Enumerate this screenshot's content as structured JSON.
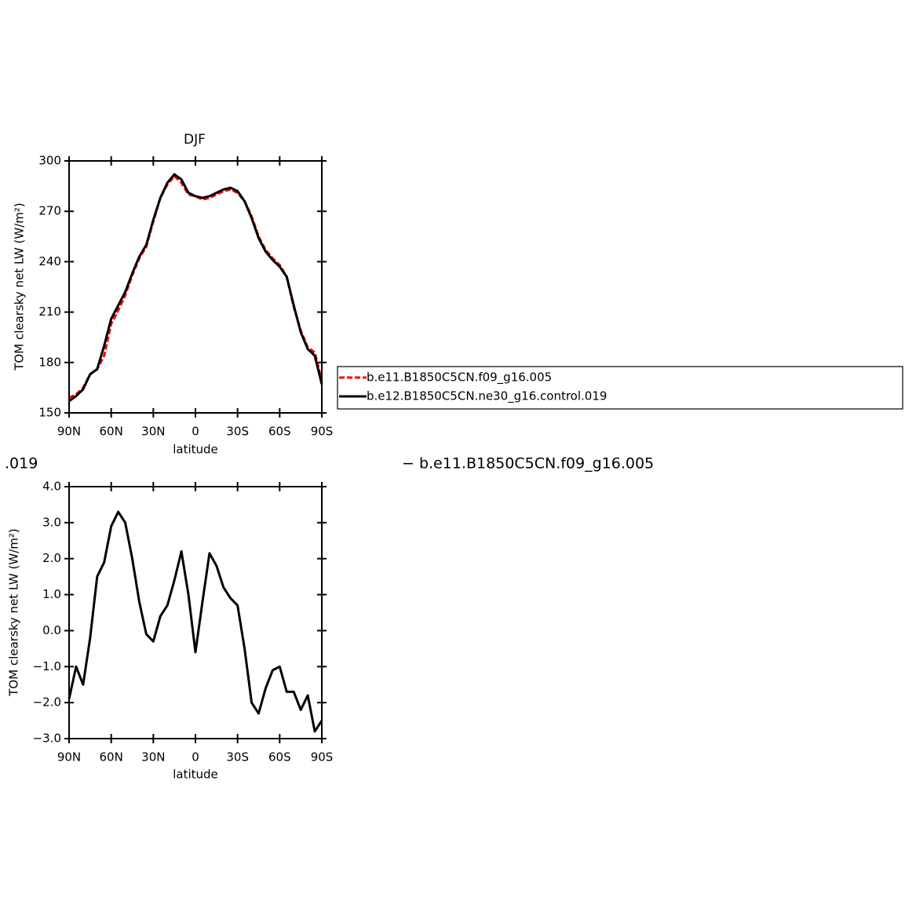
{
  "chart_data": [
    {
      "type": "line",
      "title": "DJF",
      "x_label": "latitude",
      "y_label": "TOM clearsky net LW (W/m²)",
      "x": [
        90,
        85,
        80,
        75,
        70,
        65,
        60,
        55,
        50,
        45,
        40,
        35,
        30,
        25,
        20,
        15,
        10,
        5,
        0,
        -5,
        -10,
        -15,
        -20,
        -25,
        -30,
        -35,
        -40,
        -45,
        -50,
        -55,
        -60,
        -65,
        -70,
        -75,
        -80,
        -85,
        -90
      ],
      "series": [
        {
          "name": "b.e11.B1850C5CN.f09_g16.005",
          "color": "#ff0000",
          "dashed": true,
          "values": [
            159,
            161,
            165,
            173,
            176,
            184,
            203,
            211,
            220,
            232,
            242,
            249,
            264,
            278,
            286,
            291,
            287,
            280,
            279,
            277,
            278,
            280,
            282,
            283,
            281,
            276,
            267,
            255,
            247,
            242,
            238,
            231,
            213,
            199,
            189,
            186,
            169
          ]
        },
        {
          "name": "b.e12.B1850C5CN.ne30_g16.control.019",
          "color": "#000000",
          "values": [
            157,
            160,
            164,
            173,
            176,
            190,
            206,
            214,
            222,
            233,
            243,
            250,
            265,
            278,
            287,
            292,
            289,
            281,
            279,
            278,
            279,
            281,
            283,
            284,
            282,
            276,
            266,
            254,
            246,
            241,
            237,
            231,
            214,
            198,
            188,
            184,
            167
          ]
        }
      ],
      "xlim": [
        90,
        -90
      ],
      "xticks": [
        {
          "value": 90,
          "label": "90N"
        },
        {
          "value": 60,
          "label": "60N"
        },
        {
          "value": 30,
          "label": "30N"
        },
        0,
        {
          "value": -30,
          "label": "30S"
        },
        {
          "value": -60,
          "label": "60S"
        },
        {
          "value": -90,
          "label": "90S"
        }
      ],
      "ylim": [
        150,
        300
      ],
      "yticks": [
        150,
        180,
        210,
        240,
        270,
        300
      ]
    },
    {
      "type": "line",
      "x_label": "latitude",
      "y_label": "TOM clearsky net LW (W/m²)",
      "x": [
        90,
        85,
        80,
        75,
        70,
        65,
        60,
        55,
        50,
        45,
        40,
        35,
        30,
        25,
        20,
        15,
        10,
        5,
        0,
        -5,
        -10,
        -15,
        -20,
        -25,
        -30,
        -35,
        -40,
        -45,
        -50,
        -55,
        -60,
        -65,
        -70,
        -75,
        -80,
        -85,
        -90
      ],
      "color": "#000000",
      "values": [
        -1.9,
        -1.0,
        -1.5,
        -0.2,
        1.5,
        1.9,
        2.9,
        3.3,
        3.0,
        2.0,
        0.8,
        -0.1,
        -0.3,
        0.4,
        0.7,
        1.4,
        2.2,
        1.0,
        -0.6,
        0.8,
        2.15,
        1.8,
        1.2,
        0.9,
        0.7,
        -0.5,
        -2.0,
        -2.3,
        -1.6,
        -1.1,
        -1.0,
        -1.7,
        -1.7,
        -2.2,
        -1.8,
        -2.8,
        -2.5
      ],
      "xlim": [
        90,
        -90
      ],
      "xticks": [
        {
          "value": 90,
          "label": "90N"
        },
        {
          "value": 60,
          "label": "60N"
        },
        {
          "value": 30,
          "label": "30N"
        },
        0,
        {
          "value": -30,
          "label": "30S"
        },
        {
          "value": -60,
          "label": "60S"
        },
        {
          "value": -90,
          "label": "90S"
        }
      ],
      "ylim": [
        -3,
        4
      ],
      "yticks": [
        {
          "value": -3,
          "label": "−3.0"
        },
        {
          "value": -2,
          "label": "−2.0"
        },
        {
          "value": -1,
          "label": "−1.0"
        },
        {
          "value": 0,
          "label": "0.0"
        },
        {
          "value": 1,
          "label": "1.0"
        },
        {
          "value": 2,
          "label": "2.0"
        },
        {
          "value": 3,
          "label": "3.0"
        },
        {
          "value": 4,
          "label": "4.0"
        }
      ],
      "annotations": [
        ".019",
        "− b.e11.B1850C5CN.f09_g16.005"
      ]
    }
  ]
}
